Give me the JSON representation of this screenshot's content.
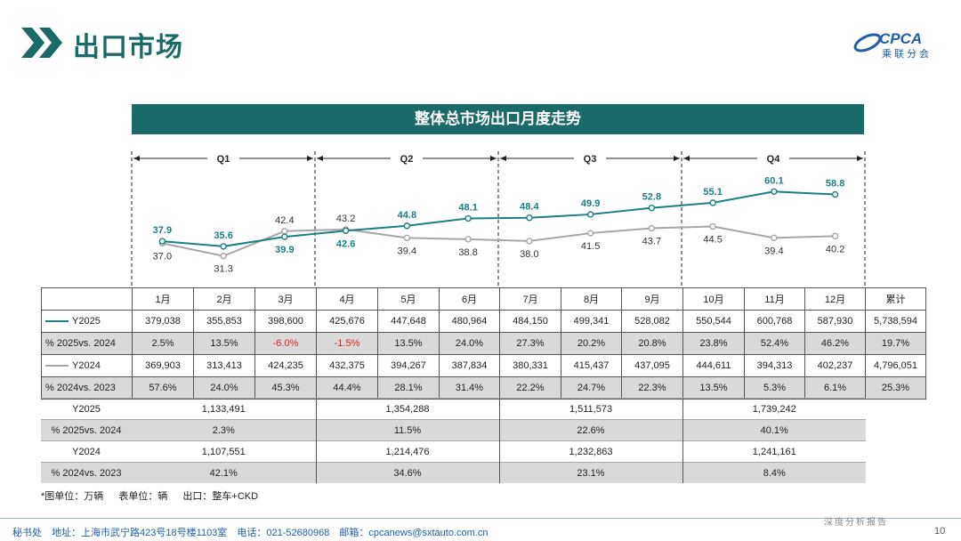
{
  "header": {
    "title": "出口市场",
    "logo_text": "CPCA",
    "logo_sub": "乘联分会"
  },
  "colors": {
    "accent": "#1a6b68",
    "y2025": "#1a7f86",
    "y2024": "#a6a6a6",
    "negative": "#e02020"
  },
  "chart_data": {
    "type": "line",
    "title": "整体总市场出口月度走势",
    "categories": [
      "1月",
      "2月",
      "3月",
      "4月",
      "5月",
      "6月",
      "7月",
      "8月",
      "9月",
      "10月",
      "11月",
      "12月"
    ],
    "quarters": [
      "Q1",
      "Q2",
      "Q3",
      "Q4"
    ],
    "unit": "万辆",
    "series": [
      {
        "name": "Y2025",
        "values": [
          37.9,
          35.6,
          39.9,
          42.6,
          44.8,
          48.1,
          48.4,
          49.9,
          52.8,
          55.1,
          60.1,
          58.8
        ],
        "labels": [
          "37.9",
          "35.6",
          "39.9",
          "42.6",
          "44.8",
          "48.1",
          "48.4",
          "49.9",
          "52.8",
          "55.1",
          "60.1",
          "58.8"
        ]
      },
      {
        "name": "Y2024",
        "values": [
          37.0,
          31.3,
          42.4,
          43.2,
          39.4,
          38.8,
          38.0,
          41.5,
          43.7,
          44.5,
          39.4,
          40.2
        ],
        "labels": [
          "37.0",
          "31.3",
          "42.4",
          "43.2",
          "39.4",
          "38.8",
          "38.0",
          "41.5",
          "43.7",
          "44.5",
          "39.4",
          "40.2"
        ]
      }
    ],
    "ylim": [
      28,
      63
    ]
  },
  "table": {
    "months": [
      "1月",
      "2月",
      "3月",
      "4月",
      "5月",
      "6月",
      "7月",
      "8月",
      "9月",
      "10月",
      "11月",
      "12月"
    ],
    "total_label": "累计",
    "rows": [
      {
        "label": "Y2025",
        "legend": "y2025",
        "values": [
          "379,038",
          "355,853",
          "398,600",
          "425,676",
          "447,648",
          "480,964",
          "484,150",
          "499,341",
          "528,082",
          "550,544",
          "600,768",
          "587,930",
          "5,738,594"
        ]
      },
      {
        "label": "% 2025vs. 2024",
        "pct": true,
        "values": [
          "2.5%",
          "13.5%",
          "-6.0%",
          "-1.5%",
          "13.5%",
          "24.0%",
          "27.3%",
          "20.2%",
          "20.8%",
          "23.8%",
          "52.4%",
          "46.2%",
          "19.7%"
        ]
      },
      {
        "label": "Y2024",
        "legend": "y2024",
        "values": [
          "369,903",
          "313,413",
          "424,235",
          "432,375",
          "394,267",
          "387,834",
          "380,331",
          "415,437",
          "437,095",
          "444,611",
          "394,313",
          "402,237",
          "4,796,051"
        ]
      },
      {
        "label": "% 2024vs. 2023",
        "pct": true,
        "values": [
          "57.6%",
          "24.0%",
          "45.3%",
          "44.4%",
          "28.1%",
          "31.4%",
          "22.2%",
          "24.7%",
          "22.3%",
          "13.5%",
          "5.3%",
          "6.1%",
          "25.3%"
        ]
      }
    ],
    "quarter_rows": [
      {
        "label": "Y2025",
        "values": [
          "1,133,491",
          "1,354,288",
          "1,511,573",
          "1,739,242"
        ]
      },
      {
        "label": "% 2025vs. 2024",
        "pct": true,
        "values": [
          "2.3%",
          "11.5%",
          "22.6%",
          "40.1%"
        ]
      },
      {
        "label": "Y2024",
        "values": [
          "1,107,551",
          "1,214,476",
          "1,232,863",
          "1,241,161"
        ]
      },
      {
        "label": "% 2024vs. 2023",
        "pct": true,
        "values": [
          "42.1%",
          "34.6%",
          "23.1%",
          "8.4%"
        ]
      }
    ]
  },
  "footnote": {
    "unit_chart": "*图单位：万辆",
    "unit_table": "表单位：辆",
    "scope": "出口：整车+CKD"
  },
  "footer": {
    "org": "秘书处",
    "address": "地址：上海市武宁路423号18号楼1103室",
    "phone": "电话：021-52680968",
    "email": "邮箱：cpcanews@sxtauto.com.cn",
    "tag": "深度分析报告",
    "page": "10"
  }
}
